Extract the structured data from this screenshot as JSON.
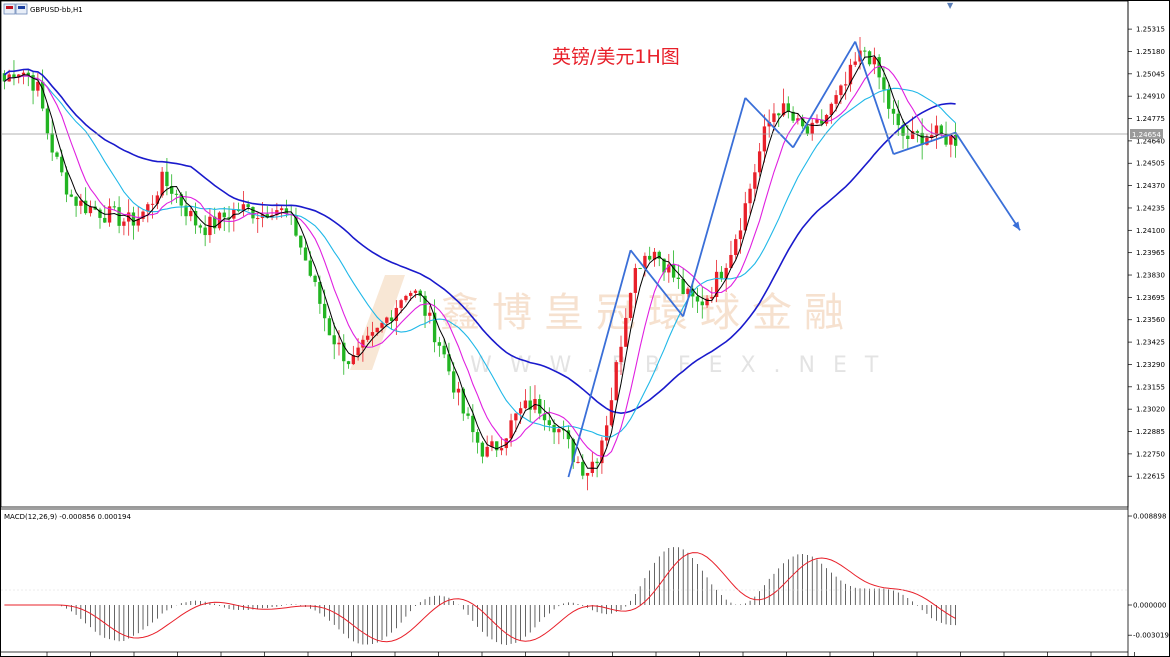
{
  "window": {
    "symbol_label": "GBPUSD-bb,H1",
    "chart_title": "英镑/美元1H图",
    "watermark_cn": "鑫博皇冠環球金融",
    "watermark_en": "WWW.BBFEX.NET"
  },
  "chart_data": [
    {
      "type": "candlestick",
      "title": "英镑/美元1H图",
      "symbol": "GBPUSD-bb,H1",
      "y_ticks": [
        "1.25315",
        "1.25180",
        "1.25045",
        "1.24910",
        "1.24775",
        "1.24640",
        "1.24505",
        "1.24370",
        "1.24235",
        "1.24100",
        "1.23965",
        "1.23830",
        "1.23695",
        "1.23560",
        "1.23425",
        "1.23290",
        "1.23155",
        "1.23020",
        "1.22885",
        "1.22750",
        "1.22615"
      ],
      "ylim": [
        1.2255,
        1.2537
      ],
      "current_price": "1.24654",
      "colors": {
        "bull": "#e8202a",
        "bear": "#22b422",
        "ma_fast": "#000000",
        "ma_mid": "#e020e0",
        "ma_slow": "#20b8e8",
        "ma_long": "#1a1acc",
        "arrow": "#3a6fd8"
      },
      "note": "Approximate hourly close path read from the chart",
      "closes": [
        1.25,
        1.2508,
        1.2505,
        1.2495,
        1.2465,
        1.2445,
        1.243,
        1.2425,
        1.2423,
        1.242,
        1.2418,
        1.2415,
        1.2418,
        1.2425,
        1.244,
        1.2435,
        1.2425,
        1.2415,
        1.2412,
        1.2415,
        1.242,
        1.2423,
        1.2422,
        1.242,
        1.2425,
        1.242,
        1.241,
        1.239,
        1.237,
        1.235,
        1.2338,
        1.233,
        1.2338,
        1.2345,
        1.2355,
        1.2365,
        1.2375,
        1.237,
        1.2355,
        1.234,
        1.232,
        1.23,
        1.2285,
        1.2275,
        1.228,
        1.229,
        1.23,
        1.2305,
        1.2303,
        1.2295,
        1.2285,
        1.2272,
        1.2265,
        1.2275,
        1.23,
        1.234,
        1.238,
        1.2395,
        1.2398,
        1.239,
        1.238,
        1.237,
        1.2365,
        1.2372,
        1.2385,
        1.24,
        1.242,
        1.2445,
        1.247,
        1.2485,
        1.248,
        1.2472,
        1.2468,
        1.2475,
        1.2485,
        1.2495,
        1.251,
        1.252,
        1.2505,
        1.2485,
        1.2468,
        1.2465,
        1.2467,
        1.2468,
        1.2466,
        1.2465
      ]
    },
    {
      "type": "macd",
      "label": "MACD(12,26,9) -0.000856 0.000194",
      "y_ticks": [
        "0.008898",
        "0.000000",
        "-0.003019"
      ],
      "ylim": [
        -0.0032,
        0.0091
      ],
      "histogram_color": "#000000",
      "signal_color": "#e8202a"
    }
  ],
  "x_ticks_count": 28
}
